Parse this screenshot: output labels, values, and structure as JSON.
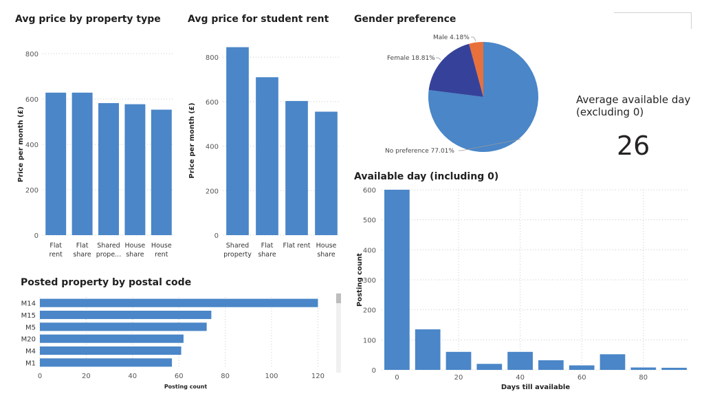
{
  "colors": {
    "bar": "#4a86c8",
    "grid": "#c8c8c8",
    "axis_text": "#555555",
    "pie_blue": "#4a86c8",
    "pie_navy": "#36429a",
    "pie_orange": "#e8703a"
  },
  "titles": {
    "property_type": "Avg price by property type",
    "student_rent": "Avg price for student rent",
    "gender": "Gender preference",
    "available_day": "Available day (including 0)",
    "postal": "Posted property by postal code"
  },
  "kpi": {
    "label_line1": "Average available day",
    "label_line2": "(excluding 0)",
    "value": "26"
  },
  "chart_data": [
    {
      "id": "property_type",
      "type": "bar",
      "title": "Avg price by property type",
      "ylabel": "Price per month (£)",
      "xlabel": "",
      "categories": [
        [
          "Flat",
          "rent"
        ],
        [
          "Flat",
          "share"
        ],
        [
          "Shared",
          "prope..."
        ],
        [
          "House",
          "share"
        ],
        [
          "House",
          "rent"
        ]
      ],
      "values": [
        628,
        628,
        582,
        577,
        553
      ],
      "ylim": [
        0,
        800
      ],
      "yticks": [
        0,
        200,
        400,
        600,
        800
      ],
      "grid": true
    },
    {
      "id": "student_rent",
      "type": "bar",
      "title": "Avg price for student rent",
      "ylabel": "Price per month (£)",
      "xlabel": "",
      "categories": [
        [
          "Shared",
          "property"
        ],
        [
          "Flat",
          "share"
        ],
        [
          "Flat rent"
        ],
        [
          "House",
          "share"
        ]
      ],
      "values": [
        845,
        710,
        603,
        555
      ],
      "ylim": [
        0,
        850
      ],
      "yticks": [
        0,
        200,
        400,
        600,
        800
      ],
      "grid": true
    },
    {
      "id": "gender",
      "type": "pie",
      "title": "Gender preference",
      "slices": [
        {
          "label": "No preference",
          "pct_label": "77.01%",
          "value": 77.01
        },
        {
          "label": "Female",
          "pct_label": "18.81%",
          "value": 18.81
        },
        {
          "label": "Male",
          "pct_label": "4.18%",
          "value": 4.18
        }
      ]
    },
    {
      "id": "available_day",
      "type": "bar",
      "title": "Available day (including 0)",
      "ylabel": "Posting count",
      "xlabel": "Days till available",
      "x": [
        0,
        10,
        20,
        30,
        40,
        50,
        60,
        70,
        80,
        90
      ],
      "values": [
        600,
        135,
        60,
        20,
        60,
        32,
        15,
        52,
        8,
        7
      ],
      "xlim": [
        -5,
        95
      ],
      "xticks": [
        0,
        20,
        40,
        60,
        80
      ],
      "ylim": [
        0,
        600
      ],
      "yticks": [
        0,
        100,
        200,
        300,
        400,
        500,
        600
      ],
      "grid": true
    },
    {
      "id": "postal",
      "type": "bar",
      "orientation": "horizontal",
      "title": "Posted property by postal code",
      "xlabel": "Posting count",
      "categories": [
        "M14",
        "M15",
        "M5",
        "M20",
        "M4",
        "M1"
      ],
      "values": [
        120,
        74,
        72,
        62,
        61,
        57
      ],
      "xlim": [
        0,
        127
      ],
      "xticks": [
        0,
        20,
        40,
        60,
        80,
        100,
        120
      ],
      "grid": true
    }
  ]
}
